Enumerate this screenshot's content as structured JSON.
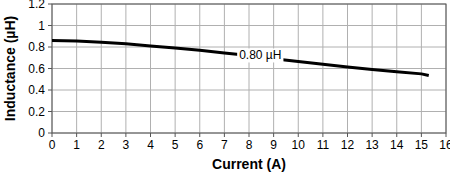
{
  "chart_data": {
    "type": "line",
    "x_label": "Current (A)",
    "y_label": "Inductance (µH)",
    "annotations": [
      "0.80 µH"
    ],
    "x": [
      0,
      1,
      2,
      3,
      4,
      5,
      6,
      7,
      8,
      9,
      10,
      11,
      12,
      13,
      14,
      15,
      15.3
    ],
    "series": [
      {
        "name": null,
        "color": "#000000",
        "values": [
          0.86,
          0.855,
          0.845,
          0.83,
          0.81,
          0.79,
          0.77,
          0.745,
          0.72,
          0.69,
          0.665,
          0.64,
          0.615,
          0.59,
          0.57,
          0.55,
          0.535
        ]
      }
    ],
    "xlim": [
      0,
      16
    ],
    "xticks": [
      0,
      1,
      2,
      3,
      4,
      5,
      6,
      7,
      8,
      9,
      10,
      11,
      12,
      13,
      14,
      15,
      16
    ],
    "ylim": [
      0,
      1.2
    ],
    "yticks": [
      0,
      0.2,
      0.4,
      0.6,
      0.8,
      1,
      {
        "value": 1.2,
        "label": "1.2"
      }
    ],
    "grid": true
  }
}
